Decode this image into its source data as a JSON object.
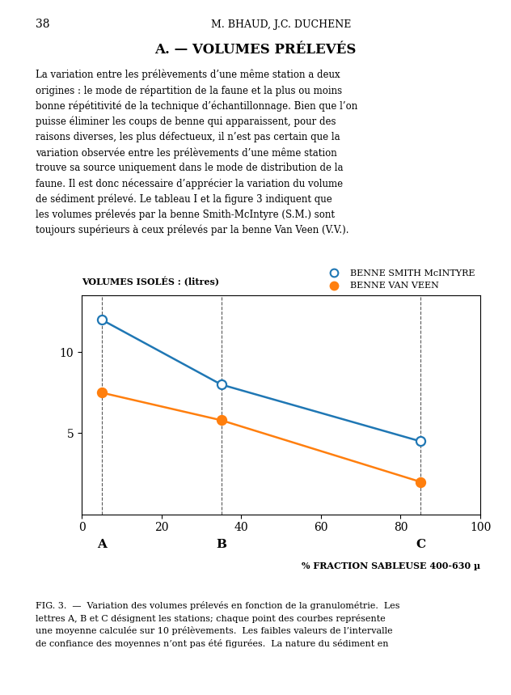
{
  "chart_data": {
    "type": "line",
    "page_number": "38",
    "page_header": "M. BHAUD, J.C. DUCHENE",
    "title": "A. — VOLUMES PRÉLEVÉS",
    "body_text": "La variation entre les prélèvements d’une même station a deux\norigines : le mode de répartition de la faune et la plus ou moins\nbonne répétitivité de la technique d’échantillonnage. Bien que l’on\npuisse éliminer les coups de benne qui apparaissent, pour des\nraisons diverses, les plus défectueux, il n’est pas certain que la\nvariation observée entre les prélèvements d’une même station\ntrouve sa source uniquement dans le mode de distribution de la\nfaune. Il est donc nécessaire d’apprécier la variation du volume\nde sédiment prélevé. Le tableau I et la figure 3 indiquent que\nles volumes prélevés par la benne Smith-McIntyre (S.M.) sont\ntoujours supérieurs à ceux prélevés par la benne Van Veen (V.V.).",
    "caption": "FIG. 3.  —  Variation des volumes prélevés en fonction de la granulométrie.  Les\nlettres A, B et C désignent les stations; chaque point des courbes représente\nune moyenne calculée sur 10 prélèvements.  Les faibles valeurs de l’intervalle\nde confiance des moyennes n’ont pas été figurées.  La nature du sédiment en",
    "xlabel": "% FRACTION SABLEUSE 400-630 µ",
    "ylabel": "VOLUMES ISOLÉS : (litres)",
    "x": [
      5,
      35,
      85
    ],
    "series": [
      {
        "name": "BENNE SMITH McINTYRE",
        "values": [
          12.0,
          8.0,
          4.5
        ],
        "marker": "open_circle"
      },
      {
        "name": "BENNE VAN VEEN",
        "values": [
          7.5,
          5.8,
          2.0
        ],
        "marker": "filled_circle"
      }
    ],
    "annotations": [
      {
        "x": 5,
        "text": "A"
      },
      {
        "x": 35,
        "text": "B"
      },
      {
        "x": 85,
        "text": "C"
      }
    ],
    "xlim": [
      0,
      100
    ],
    "ylim": [
      0,
      13.5
    ],
    "xticks": [
      0,
      20,
      40,
      60,
      80,
      100
    ],
    "yticks": [
      5,
      10
    ]
  }
}
